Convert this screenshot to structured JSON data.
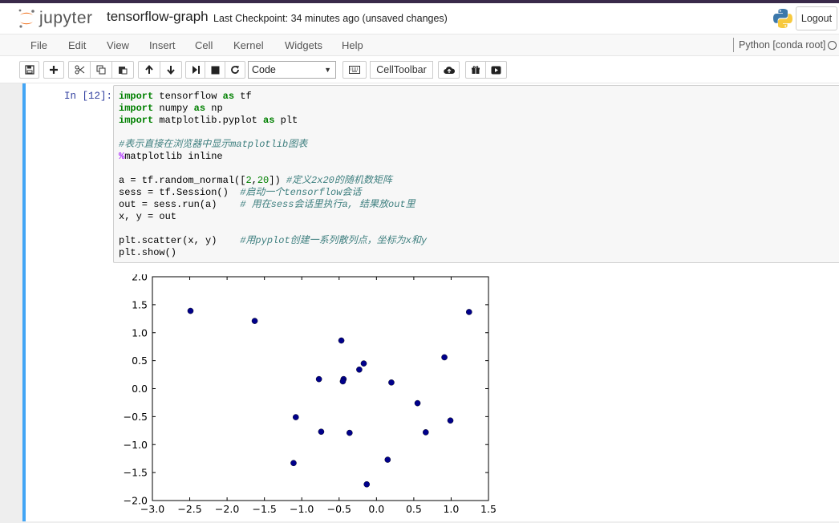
{
  "header": {
    "logo_text": "jupyter",
    "notebook_name": "tensorflow-graph",
    "checkpoint": "Last Checkpoint: 34 minutes ago (unsaved changes)",
    "logout_label": "Logout"
  },
  "menu": {
    "items": [
      "File",
      "Edit",
      "View",
      "Insert",
      "Cell",
      "Kernel",
      "Widgets",
      "Help"
    ],
    "kernel_name": "Python [conda root]"
  },
  "toolbar": {
    "buttons": [
      "save-icon",
      "add-icon",
      "cut-icon",
      "copy-icon",
      "paste-icon",
      "move-up-icon",
      "move-down-icon",
      "run-icon",
      "stop-icon",
      "restart-icon"
    ],
    "cell_type": "Code",
    "command_palette_icon": "keyboard-icon",
    "celltoolbar_label": "CellToolbar",
    "extra_buttons": [
      "cloud-upload-icon",
      "gift-icon",
      "presentation-icon"
    ]
  },
  "cell": {
    "prompt": "In  [12]:",
    "code_lines": [
      "import tensorflow as tf",
      "import numpy as np",
      "import matplotlib.pyplot as plt",
      "",
      "#表示直接在浏览器中显示matplotlib图表",
      "%matplotlib inline",
      "",
      "a = tf.random_normal([2,20]) #定义2x20的随机数矩阵",
      "sess = tf.Session()  #启动一个tensorflow会话",
      "out = sess.run(a)    # 用在sess会话里执行a, 结果放out里",
      "x, y = out",
      "",
      "plt.scatter(x, y)    #用pyplot创建一系列散列点，坐标为x和y",
      "plt.show()"
    ]
  },
  "chart_data": {
    "type": "scatter",
    "xlim": [
      -3.0,
      1.5
    ],
    "ylim": [
      -2.0,
      2.0
    ],
    "xticks": [
      "−3.0",
      "−2.5",
      "−2.0",
      "−1.5",
      "−1.0",
      "−0.5",
      "0.0",
      "0.5",
      "1.0",
      "1.5"
    ],
    "yticks": [
      "2.0",
      "1.5",
      "1.0",
      "0.5",
      "0.0",
      "−0.5",
      "−1.0",
      "−1.5",
      "−2.0"
    ],
    "xtick_values": [
      -3.0,
      -2.5,
      -2.0,
      -1.5,
      -1.0,
      -0.5,
      0.0,
      0.5,
      1.0,
      1.5
    ],
    "ytick_values": [
      2.0,
      1.5,
      1.0,
      0.5,
      0.0,
      -0.5,
      -1.0,
      -1.5,
      -2.0
    ],
    "color": "#00008b",
    "points": [
      {
        "x": -2.49,
        "y": 1.39
      },
      {
        "x": -1.63,
        "y": 1.21
      },
      {
        "x": 1.24,
        "y": 1.37
      },
      {
        "x": -0.47,
        "y": 0.86
      },
      {
        "x": 0.91,
        "y": 0.56
      },
      {
        "x": -0.17,
        "y": 0.45
      },
      {
        "x": -0.23,
        "y": 0.34
      },
      {
        "x": -0.77,
        "y": 0.17
      },
      {
        "x": -0.44,
        "y": 0.17
      },
      {
        "x": -0.45,
        "y": 0.13
      },
      {
        "x": 0.2,
        "y": 0.11
      },
      {
        "x": 0.55,
        "y": -0.26
      },
      {
        "x": -1.08,
        "y": -0.51
      },
      {
        "x": 0.99,
        "y": -0.57
      },
      {
        "x": -0.74,
        "y": -0.77
      },
      {
        "x": -0.36,
        "y": -0.79
      },
      {
        "x": 0.66,
        "y": -0.78
      },
      {
        "x": 0.15,
        "y": -1.27
      },
      {
        "x": -1.11,
        "y": -1.33
      },
      {
        "x": -0.13,
        "y": -1.71
      }
    ]
  }
}
